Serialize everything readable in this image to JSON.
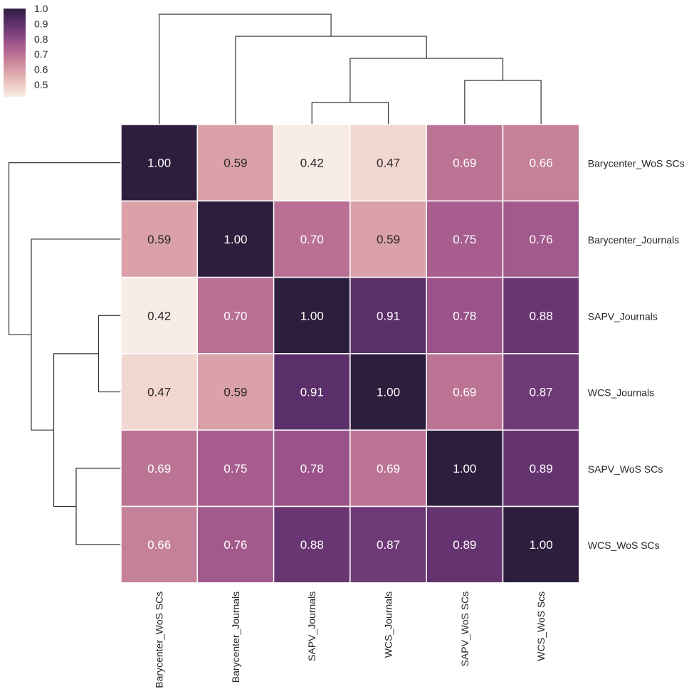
{
  "chart_data": {
    "type": "heatmap",
    "title": "",
    "row_labels": [
      "Barycenter_WoS SCs",
      "Barycenter_Journals",
      "SAPV_Journals",
      "WCS_Journals",
      "SAPV_WoS SCs",
      "WCS_WoS SCs"
    ],
    "col_labels": [
      "Barycenter_WoS SCs",
      "Barycenter_Journals",
      "SAPV_Journals",
      "WCS_Journals",
      "SAPV_WoS SCs",
      "WCS_WoS Scs"
    ],
    "values": [
      [
        1.0,
        0.59,
        0.42,
        0.47,
        0.69,
        0.66
      ],
      [
        0.59,
        1.0,
        0.7,
        0.59,
        0.75,
        0.76
      ],
      [
        0.42,
        0.7,
        1.0,
        0.91,
        0.78,
        0.88
      ],
      [
        0.47,
        0.59,
        0.91,
        1.0,
        0.69,
        0.87
      ],
      [
        0.69,
        0.75,
        0.78,
        0.69,
        1.0,
        0.89
      ],
      [
        0.66,
        0.76,
        0.88,
        0.87,
        0.89,
        1.0
      ]
    ],
    "annotations_format": "0.00",
    "colorbar": {
      "vmin": 0.42,
      "vmax": 1.0,
      "ticks": [
        1.0,
        0.9,
        0.8,
        0.7,
        0.6,
        0.5
      ],
      "tick_labels": [
        "1.0",
        "0.9",
        "0.8",
        "0.7",
        "0.6",
        "0.5"
      ],
      "placement": "top-left"
    },
    "colormap": [
      "#f8ece6",
      "#eec8c1",
      "#dba3aa",
      "#c47d98",
      "#a65c8d",
      "#7f4280",
      "#582d68",
      "#2d1e3e"
    ],
    "dendrogram": {
      "top": {
        "leaf_order": [
          "Barycenter_WoS SCs",
          "Barycenter_Journals",
          "SAPV_Journals",
          "WCS_Journals",
          "SAPV_WoS SCs",
          "WCS_WoS Scs"
        ],
        "merges": [
          [
            2,
            3,
            1
          ],
          [
            4,
            5,
            2
          ],
          [
            6,
            7,
            3
          ],
          [
            1,
            8,
            4
          ],
          [
            0,
            9,
            5
          ]
        ]
      },
      "left": {
        "leaf_order": [
          "Barycenter_WoS SCs",
          "Barycenter_Journals",
          "SAPV_Journals",
          "WCS_Journals",
          "SAPV_WoS SCs",
          "WCS_WoS SCs"
        ],
        "merges": [
          [
            2,
            3,
            1
          ],
          [
            4,
            5,
            2
          ],
          [
            6,
            7,
            3
          ],
          [
            1,
            8,
            4
          ],
          [
            0,
            9,
            5
          ]
        ]
      }
    }
  }
}
